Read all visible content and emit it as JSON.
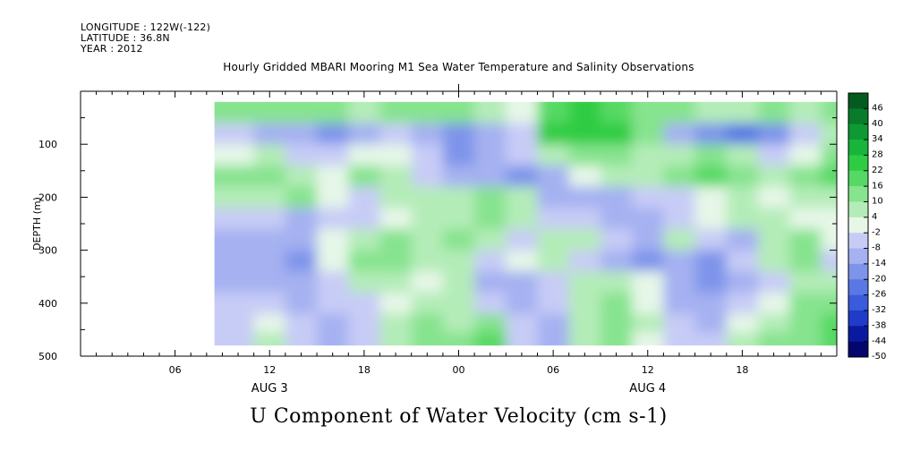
{
  "header": {
    "longitude": "LONGITUDE : 122W(-122)",
    "latitude": "LATITUDE : 36.8N",
    "year": "YEAR : 2012"
  },
  "chart_data": {
    "type": "heatmap",
    "title": "Hourly Gridded MBARI Mooring M1 Sea Water Temperature and Salinity Observations",
    "subtitle": "U Component of Water Velocity (cm s-1)",
    "ylabel": "DEPTH (m)",
    "y_inverted": true,
    "ylim": [
      0,
      500
    ],
    "y_ticks": [
      100,
      200,
      300,
      400,
      500
    ],
    "x_range_hours": [
      0,
      48
    ],
    "x_ticks": [
      {
        "hour": 6,
        "label": "06"
      },
      {
        "hour": 12,
        "label": "12"
      },
      {
        "hour": 18,
        "label": "18"
      },
      {
        "hour": 24,
        "label": "00"
      },
      {
        "hour": 30,
        "label": "06"
      },
      {
        "hour": 36,
        "label": "12"
      },
      {
        "hour": 42,
        "label": "18"
      }
    ],
    "date_labels": [
      {
        "hour": 12,
        "label": "AUG  3"
      },
      {
        "hour": 36,
        "label": "AUG  4"
      }
    ],
    "data_extent": {
      "hour_start": 8.5,
      "hour_end": 48,
      "depth_top": 20,
      "depth_bottom": 480
    },
    "colorbar": {
      "labels": [
        "46",
        "40",
        "34",
        "28",
        "22",
        "16",
        "10",
        "4",
        "-2",
        "-8",
        "-14",
        "-20",
        "-26",
        "-32",
        "-38",
        "-44",
        "-50"
      ],
      "vmin": -50,
      "vmax": 50,
      "colors": [
        "#04066e",
        "#0a1aa0",
        "#1f3bc8",
        "#3a5bdb",
        "#5a78e4",
        "#7e94ea",
        "#a5b1f1",
        "#c7ccf6",
        "#e6f7e8",
        "#b4ecb8",
        "#86e38e",
        "#56d964",
        "#2ecc43",
        "#17b53a",
        "#0e9a32",
        "#087c2a",
        "#045a1f"
      ]
    },
    "data_row_depths": [
      40,
      80,
      120,
      160,
      200,
      240,
      280,
      320,
      360,
      400,
      440,
      470
    ],
    "data_col_hours": [
      10,
      12,
      14,
      16,
      18,
      20,
      22,
      24,
      26,
      28,
      30,
      32,
      34,
      36,
      38,
      40,
      42,
      44,
      46,
      48
    ],
    "values": [
      [
        10,
        12,
        14,
        10,
        6,
        10,
        12,
        10,
        8,
        2,
        20,
        24,
        20,
        14,
        12,
        6,
        8,
        10,
        4,
        12
      ],
      [
        -6,
        -12,
        -14,
        -18,
        -12,
        -6,
        -10,
        -16,
        -12,
        -4,
        22,
        24,
        22,
        10,
        -12,
        -18,
        -22,
        -16,
        -8,
        4
      ],
      [
        -2,
        4,
        -4,
        -8,
        -2,
        0,
        -6,
        -16,
        -12,
        -8,
        4,
        10,
        14,
        8,
        4,
        10,
        6,
        -4,
        -2,
        10
      ],
      [
        10,
        14,
        8,
        2,
        10,
        6,
        -4,
        -10,
        -14,
        -16,
        -12,
        -2,
        6,
        4,
        10,
        16,
        14,
        6,
        10,
        16
      ],
      [
        4,
        8,
        10,
        2,
        -4,
        6,
        8,
        4,
        10,
        4,
        -10,
        -14,
        -10,
        -8,
        -6,
        2,
        4,
        -2,
        4,
        8
      ],
      [
        -4,
        -8,
        -10,
        -8,
        -4,
        2,
        4,
        8,
        12,
        6,
        -4,
        -8,
        -12,
        -10,
        -6,
        2,
        8,
        6,
        2,
        0
      ],
      [
        -10,
        -14,
        -10,
        2,
        8,
        10,
        8,
        10,
        6,
        -4,
        6,
        4,
        -8,
        -12,
        4,
        -6,
        -14,
        4,
        10,
        -2
      ],
      [
        -12,
        -14,
        -16,
        -2,
        10,
        14,
        8,
        4,
        -4,
        2,
        4,
        -6,
        -14,
        -18,
        -10,
        -16,
        -6,
        6,
        10,
        -4
      ],
      [
        -10,
        -12,
        -12,
        -8,
        4,
        8,
        -2,
        8,
        -10,
        -12,
        -6,
        4,
        8,
        -2,
        -10,
        -16,
        -10,
        -4,
        6,
        4
      ],
      [
        -8,
        -4,
        -10,
        -8,
        -4,
        2,
        6,
        8,
        -6,
        -10,
        -8,
        6,
        10,
        2,
        -12,
        -14,
        -6,
        2,
        10,
        12
      ],
      [
        -6,
        2,
        -8,
        -10,
        -6,
        4,
        10,
        8,
        14,
        -8,
        -10,
        8,
        12,
        4,
        -6,
        -10,
        -2,
        4,
        12,
        16
      ],
      [
        -4,
        6,
        -6,
        -10,
        -6,
        6,
        12,
        14,
        16,
        -6,
        -10,
        4,
        10,
        2,
        -8,
        -6,
        4,
        10,
        14,
        18
      ]
    ]
  }
}
